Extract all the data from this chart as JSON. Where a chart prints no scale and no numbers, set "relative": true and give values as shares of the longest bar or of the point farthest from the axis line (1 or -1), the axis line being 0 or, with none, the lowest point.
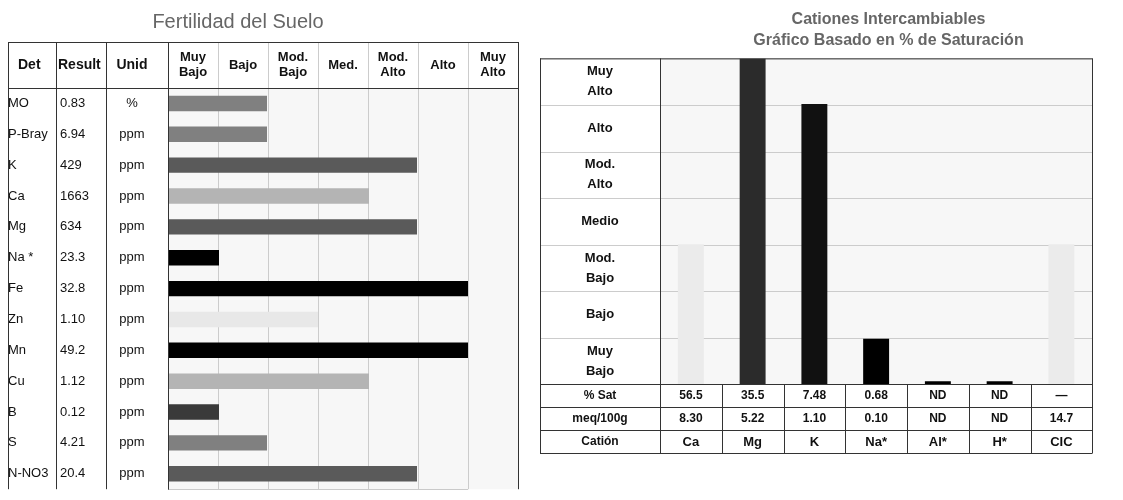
{
  "chart_data": [
    {
      "type": "bar",
      "orientation": "horizontal",
      "relative": true,
      "title": "Fertilidad del Suelo",
      "ylabel": "Det",
      "categories": [
        "MO",
        "P-Bray",
        "K",
        "Ca",
        "Mg",
        "Na *",
        "Fe",
        "Zn",
        "Mn",
        "Cu",
        "B",
        "S",
        "N-NO3"
      ],
      "values": [
        0.33,
        0.33,
        0.83,
        0.67,
        0.83,
        0.17,
        1,
        0.5,
        1,
        0.67,
        0.17,
        0.33,
        0.83
      ],
      "colors": [
        "#808080",
        "#808080",
        "#5a5a5a",
        "#b4b4b4",
        "#5a5a5a",
        "#000000",
        "#000000",
        "#e8e8e8",
        "#000000",
        "#b4b4b4",
        "#3a3a3a",
        "#808080",
        "#5a5a5a"
      ],
      "grid": true,
      "annotations": [
        "Muy Bajo",
        "Bajo",
        "Mod. Bajo",
        "Med.",
        "Mod. Alto",
        "Alto",
        "Muy Alto",
        "Result",
        "Unid",
        "0.83",
        "%",
        "6.94",
        "ppm",
        "429",
        "ppm",
        "1663",
        "ppm",
        "634",
        "ppm",
        "23.3",
        "ppm",
        "32.8",
        "ppm",
        "1.10",
        "ppm",
        "49.2",
        "ppm",
        "1.12",
        "ppm",
        "0.12",
        "ppm",
        "4.21",
        "ppm",
        "20.4",
        "ppm"
      ]
    },
    {
      "type": "bar",
      "relative": true,
      "title": "Cationes Intercambiables",
      "subtitle": "Gráfico Basado en % de Saturación",
      "xlabel": "Catión",
      "categories": [
        "Ca",
        "Mg",
        "K",
        "Na*",
        "Al*",
        "H*",
        "CIC"
      ],
      "values": [
        0.43,
        1,
        0.86,
        0.14,
        0.01,
        0.01,
        0.43
      ],
      "colors": [
        "#ebebeb",
        "#2b2b2b",
        "#111111",
        "#000000",
        "#000000",
        "#000000",
        "#ebebeb"
      ],
      "grid": true,
      "annotations": [
        "Muy Alto",
        "Alto",
        "Mod. Alto",
        "Medio",
        "Mod. Bajo",
        "Bajo",
        "Muy Bajo",
        "% Sat",
        "meq/100g",
        "56.5",
        "35.5",
        "7.48",
        "0.68",
        "ND",
        "ND",
        "—",
        "8.30",
        "5.22",
        "1.10",
        "0.10",
        "ND",
        "ND",
        "14.7"
      ]
    }
  ]
}
